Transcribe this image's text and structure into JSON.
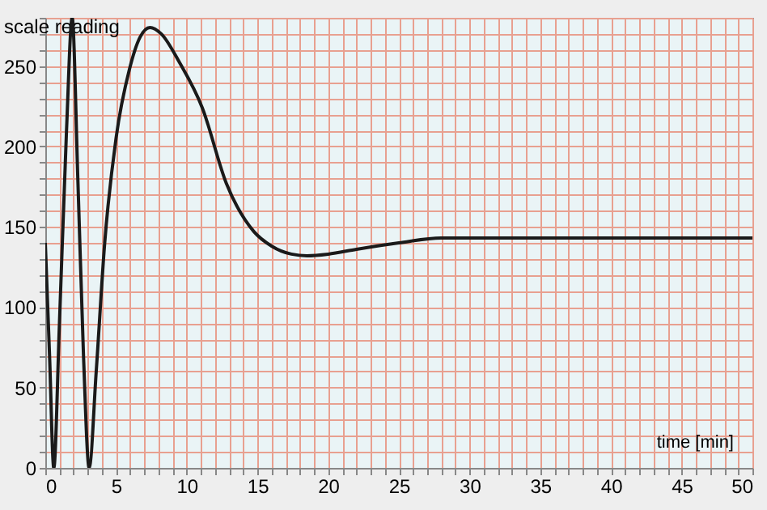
{
  "chart_data": {
    "type": "line",
    "xlabel": "time [min]",
    "ylabel": "scale reading",
    "x": [
      0,
      0.3,
      0.6,
      1.0,
      1.5,
      1.9,
      2.3,
      2.7,
      3.1,
      3.6,
      4.2,
      5.0,
      5.95,
      6.7,
      7.4,
      8.2,
      9.5,
      11.1,
      12.8,
      14.75,
      16.0,
      17.4,
      18.5,
      20,
      22,
      25,
      28,
      32,
      40,
      50
    ],
    "series": [
      {
        "color": "#1a1a1a",
        "values": [
          140,
          70,
          0,
          90,
          210,
          280,
          180,
          70,
          0,
          60,
          140,
          205,
          248,
          268,
          274,
          270,
          252,
          224,
          177,
          147,
          138,
          133,
          132,
          133,
          136,
          140,
          143,
          143,
          143,
          143
        ]
      }
    ],
    "xlim": [
      0,
      50
    ],
    "ylim": [
      0,
      280
    ],
    "xticks": [
      0,
      5,
      10,
      15,
      20,
      25,
      30,
      35,
      40,
      45,
      50
    ],
    "yticks": [
      0,
      50,
      100,
      150,
      200,
      250
    ],
    "grid": true,
    "line_style": "solid",
    "marker": "none"
  }
}
